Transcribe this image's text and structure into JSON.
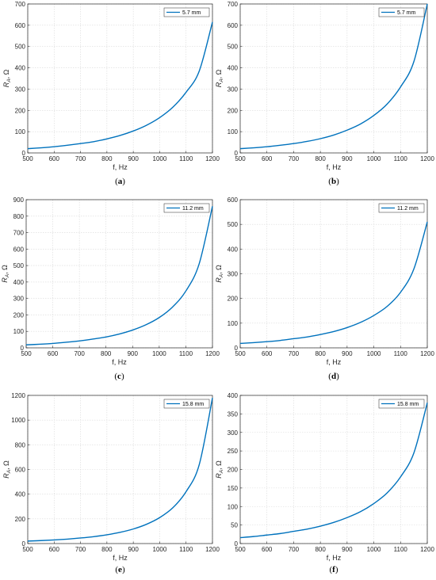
{
  "figure": {
    "series_color": "#0072BD",
    "grid": true
  },
  "chart_data": [
    {
      "type": "line",
      "panel": "a",
      "caption": "(a)",
      "xlabel": "f, Hz",
      "ylabel": "R",
      "ylabel_sub": "A",
      "ylabel_unit": ", Ω",
      "xlim": [
        500,
        1200
      ],
      "ylim": [
        0,
        700
      ],
      "xticks": [
        500,
        600,
        700,
        800,
        900,
        1000,
        1100,
        1200
      ],
      "yticks": [
        0,
        100,
        200,
        300,
        400,
        500,
        600,
        700
      ],
      "legend_position": "top-right",
      "series": [
        {
          "name": "5.7 mm",
          "x": [
            500,
            550,
            600,
            650,
            700,
            750,
            800,
            850,
            900,
            950,
            1000,
            1050,
            1100,
            1150,
            1200
          ],
          "y": [
            20,
            24,
            29,
            36,
            44,
            53,
            66,
            82,
            103,
            130,
            166,
            215,
            285,
            385,
            615
          ]
        }
      ]
    },
    {
      "type": "line",
      "panel": "b",
      "caption": "(b)",
      "xlabel": "f, Hz",
      "ylabel": "R",
      "ylabel_sub": "A",
      "ylabel_unit": ", Ω",
      "xlim": [
        500,
        1200
      ],
      "ylim": [
        0,
        700
      ],
      "xticks": [
        500,
        600,
        700,
        800,
        900,
        1000,
        1100,
        1200
      ],
      "yticks": [
        0,
        100,
        200,
        300,
        400,
        500,
        600,
        700
      ],
      "legend_position": "top-right",
      "series": [
        {
          "name": "5.7 mm",
          "x": [
            500,
            550,
            600,
            650,
            700,
            750,
            800,
            850,
            900,
            950,
            1000,
            1050,
            1100,
            1150,
            1200
          ],
          "y": [
            20,
            24,
            29,
            36,
            44,
            54,
            67,
            84,
            107,
            136,
            176,
            230,
            310,
            430,
            700
          ]
        }
      ]
    },
    {
      "type": "line",
      "panel": "c",
      "caption": "(c)",
      "xlabel": "f, Hz",
      "ylabel": "R",
      "ylabel_sub": "A",
      "ylabel_unit": ", Ω",
      "xlim": [
        500,
        1200
      ],
      "ylim": [
        0,
        900
      ],
      "xticks": [
        500,
        600,
        700,
        800,
        900,
        1000,
        1100,
        1200
      ],
      "yticks": [
        0,
        100,
        200,
        300,
        400,
        500,
        600,
        700,
        800,
        900
      ],
      "legend_position": "top-right",
      "series": [
        {
          "name": "11.2 mm",
          "x": [
            500,
            550,
            600,
            650,
            700,
            750,
            800,
            850,
            900,
            950,
            1000,
            1050,
            1100,
            1150,
            1200
          ],
          "y": [
            18,
            22,
            27,
            34,
            42,
            53,
            66,
            84,
            108,
            140,
            184,
            248,
            345,
            510,
            860
          ]
        }
      ]
    },
    {
      "type": "line",
      "panel": "d",
      "caption": "(d)",
      "xlabel": "f, Hz",
      "ylabel": "R",
      "ylabel_sub": "A",
      "ylabel_unit": ", Ω",
      "xlim": [
        500,
        1200
      ],
      "ylim": [
        0,
        600
      ],
      "xticks": [
        500,
        600,
        700,
        800,
        900,
        1000,
        1100,
        1200
      ],
      "yticks": [
        0,
        100,
        200,
        300,
        400,
        500,
        600
      ],
      "legend_position": "top-right",
      "series": [
        {
          "name": "11.2 mm",
          "x": [
            500,
            550,
            600,
            650,
            700,
            750,
            800,
            850,
            900,
            950,
            1000,
            1050,
            1100,
            1150,
            1200
          ],
          "y": [
            18,
            21,
            25,
            30,
            37,
            44,
            54,
            66,
            82,
            103,
            131,
            168,
            225,
            320,
            510
          ]
        }
      ]
    },
    {
      "type": "line",
      "panel": "e",
      "caption": "(e)",
      "xlabel": "f, Hz",
      "ylabel": "R",
      "ylabel_sub": "A",
      "ylabel_unit": ", Ω",
      "xlim": [
        500,
        1200
      ],
      "ylim": [
        0,
        1200
      ],
      "xticks": [
        500,
        600,
        700,
        800,
        900,
        1000,
        1100,
        1200
      ],
      "yticks": [
        0,
        200,
        400,
        600,
        800,
        1000,
        1200
      ],
      "legend_position": "top-right",
      "series": [
        {
          "name": "15.8 mm",
          "x": [
            500,
            550,
            600,
            650,
            700,
            750,
            800,
            850,
            900,
            950,
            1000,
            1050,
            1100,
            1150,
            1200
          ],
          "y": [
            20,
            24,
            29,
            36,
            45,
            56,
            71,
            91,
            118,
            156,
            210,
            290,
            420,
            640,
            1180
          ]
        }
      ]
    },
    {
      "type": "line",
      "panel": "f",
      "caption": "(f)",
      "xlabel": "f, Hz",
      "ylabel": "R",
      "ylabel_sub": "A",
      "ylabel_unit": ", Ω",
      "xlim": [
        500,
        1200
      ],
      "ylim": [
        0,
        400
      ],
      "xticks": [
        500,
        600,
        700,
        800,
        900,
        1000,
        1100,
        1200
      ],
      "yticks": [
        0,
        50,
        100,
        150,
        200,
        250,
        300,
        350,
        400
      ],
      "legend_position": "top-right",
      "series": [
        {
          "name": "15.8 mm",
          "x": [
            500,
            550,
            600,
            650,
            700,
            750,
            800,
            850,
            900,
            950,
            1000,
            1050,
            1100,
            1150,
            1200
          ],
          "y": [
            16,
            19,
            23,
            27,
            33,
            39,
            47,
            57,
            70,
            86,
            108,
            137,
            180,
            245,
            380
          ]
        }
      ]
    }
  ]
}
